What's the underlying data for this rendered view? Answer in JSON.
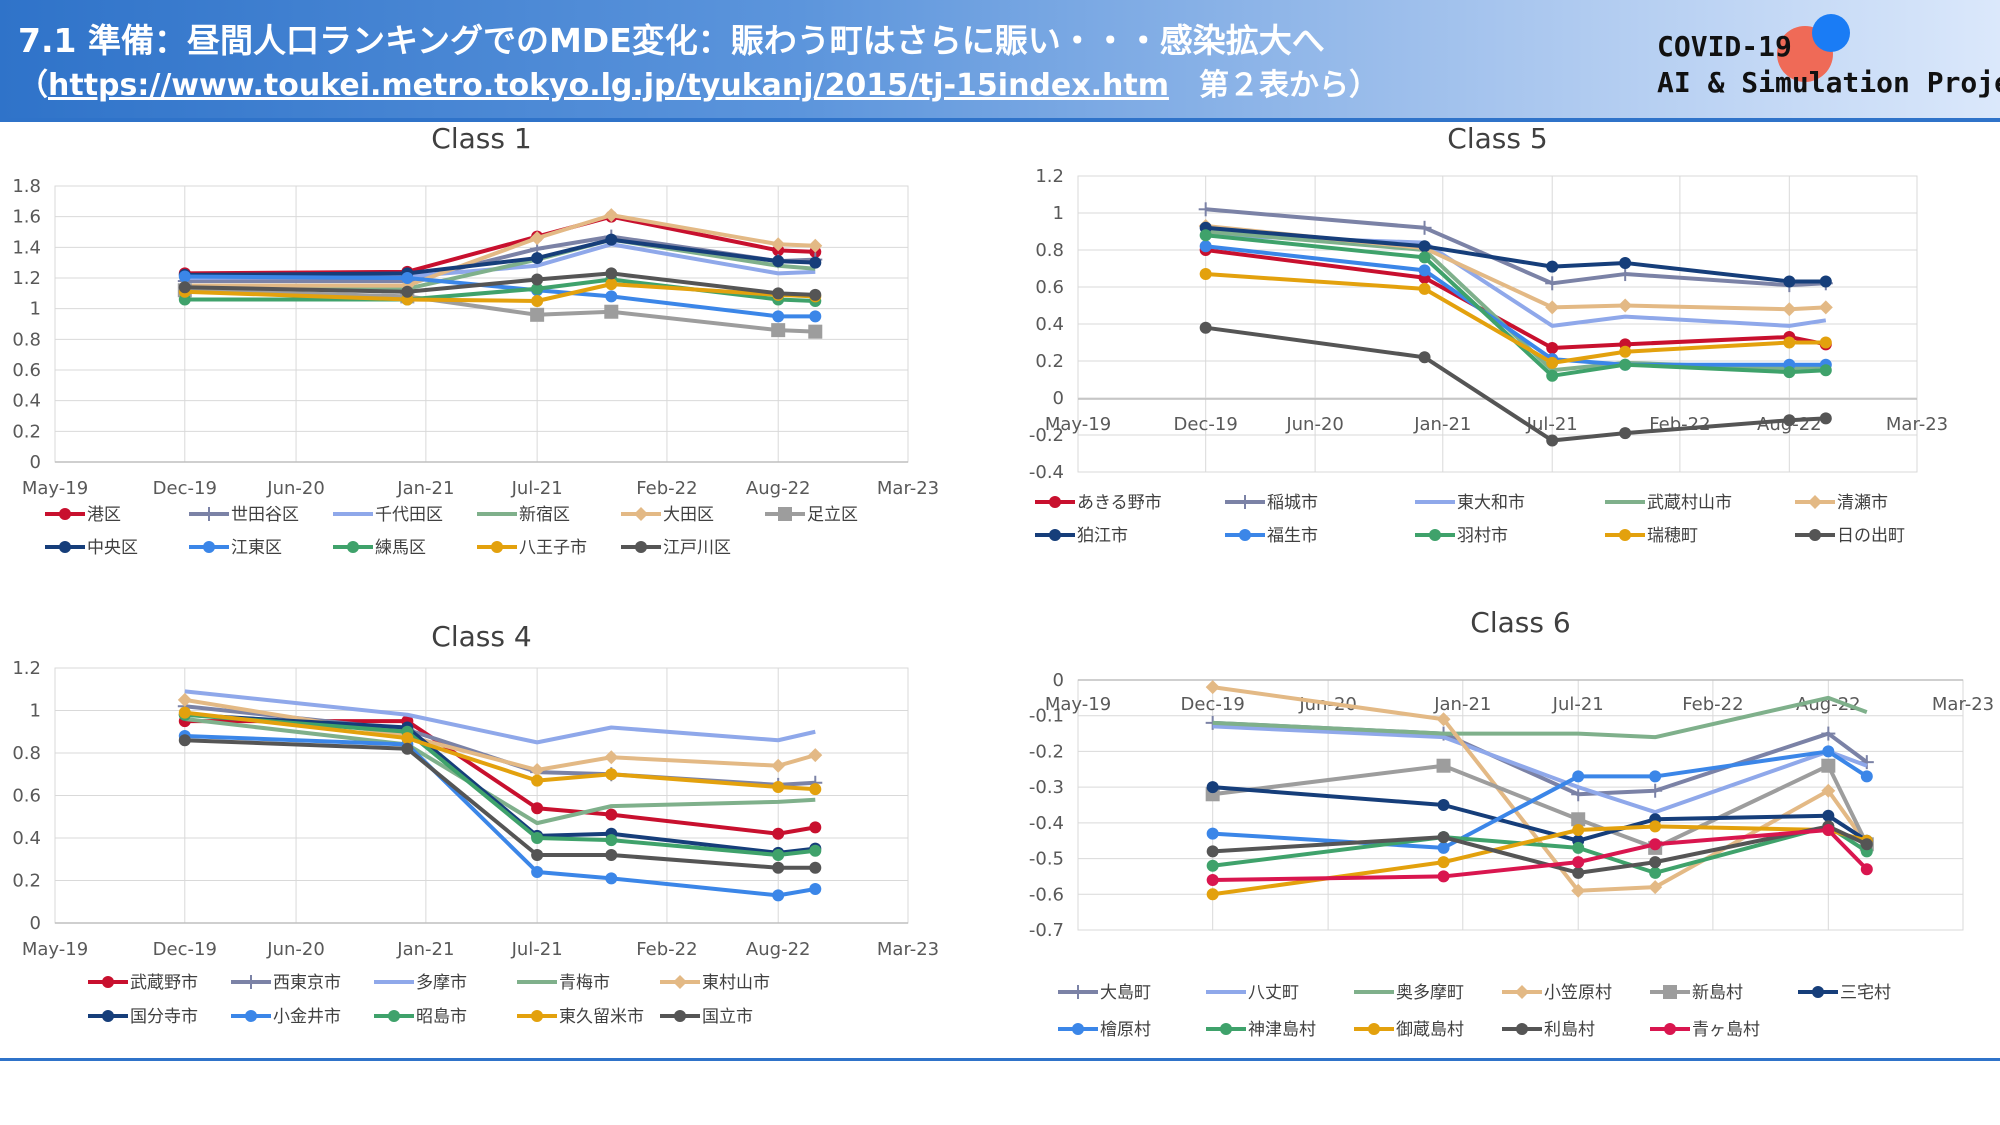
{
  "header": {
    "title": "7.1 準備：昼間人口ランキングでのMDE変化：賑わう町はさらに賑い・・・感染拡大へ",
    "source_open": "（",
    "source_url": "https://www.toukei.metro.tokyo.lg.jp/tyukanj/2015/tj-15index.htm",
    "source_rest": "　第２表から）",
    "logo_line1": "COVID-19",
    "logo_line2": "AI & Simulation Project"
  },
  "colors": {
    "banner_start": "#2f73c9",
    "banner_end": "#dbe8fb",
    "rule": "#2f73c9",
    "logo_red": "#ef6a57",
    "logo_blue": "#1a7cf5"
  },
  "x_tick_labels": [
    "May-19",
    "Dec-19",
    "Jun-20",
    "Jan-21",
    "Jul-21",
    "Feb-22",
    "Aug-22",
    "Mar-23"
  ],
  "chart_data": [
    {
      "id": "class1",
      "type": "line",
      "title": "Class 1",
      "ylim": [
        0,
        1.8
      ],
      "yticks": [
        "0",
        "0.2",
        "0.4",
        "0.6",
        "0.8",
        "1",
        "1.2",
        "1.4",
        "1.6",
        "1.8"
      ],
      "x_points": [
        "Dec-19",
        "Dec-20",
        "Jul-21",
        "Nov-21",
        "Aug-22",
        "Oct-22"
      ],
      "series": [
        {
          "name": "港区",
          "color": "#c8102e",
          "marker": "circle",
          "values": [
            1.23,
            1.24,
            1.47,
            1.6,
            1.38,
            1.37
          ]
        },
        {
          "name": "世田谷区",
          "color": "#7b82a6",
          "marker": "plus",
          "values": [
            1.18,
            1.18,
            1.39,
            1.47,
            1.31,
            1.32
          ]
        },
        {
          "name": "千代田区",
          "color": "#8fa8ea",
          "marker": "none",
          "values": [
            1.2,
            1.21,
            1.28,
            1.42,
            1.23,
            1.24
          ]
        },
        {
          "name": "新宿区",
          "color": "#7fb08b",
          "marker": "none",
          "values": [
            1.13,
            1.13,
            1.32,
            1.45,
            1.28,
            1.26
          ]
        },
        {
          "name": "大田区",
          "color": "#e3b985",
          "marker": "diamond",
          "values": [
            1.15,
            1.15,
            1.46,
            1.61,
            1.42,
            1.41
          ]
        },
        {
          "name": "足立区",
          "color": "#9d9d9d",
          "marker": "square",
          "values": [
            1.12,
            1.08,
            0.96,
            0.98,
            0.86,
            0.85
          ]
        },
        {
          "name": "中央区",
          "color": "#163e7a",
          "marker": "circle",
          "values": [
            1.22,
            1.23,
            1.33,
            1.45,
            1.31,
            1.3
          ]
        },
        {
          "name": "江東区",
          "color": "#3b86e8",
          "marker": "circle",
          "values": [
            1.21,
            1.2,
            1.12,
            1.08,
            0.95,
            0.95
          ]
        },
        {
          "name": "練馬区",
          "color": "#3fa26b",
          "marker": "circle",
          "values": [
            1.06,
            1.06,
            1.13,
            1.19,
            1.06,
            1.05
          ]
        },
        {
          "name": "八王子市",
          "color": "#e3a10d",
          "marker": "circle",
          "values": [
            1.11,
            1.06,
            1.05,
            1.16,
            1.09,
            1.08
          ]
        },
        {
          "name": "江戸川区",
          "color": "#555555",
          "marker": "circle",
          "values": [
            1.14,
            1.11,
            1.19,
            1.23,
            1.1,
            1.09
          ]
        }
      ]
    },
    {
      "id": "class5",
      "type": "line",
      "title": "Class 5",
      "ylim": [
        -0.4,
        1.2
      ],
      "yticks": [
        "-0.4",
        "-0.2",
        "0",
        "0.2",
        "0.4",
        "0.6",
        "0.8",
        "1",
        "1.2"
      ],
      "x_points": [
        "Dec-19",
        "Dec-20",
        "Jul-21",
        "Nov-21",
        "Aug-22",
        "Oct-22"
      ],
      "series": [
        {
          "name": "あきる野市",
          "color": "#c8102e",
          "marker": "circle",
          "values": [
            0.8,
            0.65,
            0.27,
            0.29,
            0.33,
            0.29
          ]
        },
        {
          "name": "稲城市",
          "color": "#7b82a6",
          "marker": "plus",
          "values": [
            1.02,
            0.92,
            0.62,
            0.67,
            0.61,
            0.62
          ]
        },
        {
          "name": "東大和市",
          "color": "#8fa8ea",
          "marker": "none",
          "values": [
            0.88,
            0.84,
            0.39,
            0.44,
            0.39,
            0.42
          ]
        },
        {
          "name": "武蔵村山市",
          "color": "#7fb08b",
          "marker": "none",
          "values": [
            0.9,
            0.8,
            0.15,
            0.19,
            0.16,
            0.17
          ]
        },
        {
          "name": "清瀬市",
          "color": "#e3b985",
          "marker": "diamond",
          "values": [
            0.93,
            0.81,
            0.49,
            0.5,
            0.48,
            0.49
          ]
        },
        {
          "name": "狛江市",
          "color": "#163e7a",
          "marker": "circle",
          "values": [
            0.92,
            0.82,
            0.71,
            0.73,
            0.63,
            0.63
          ]
        },
        {
          "name": "福生市",
          "color": "#3b86e8",
          "marker": "circle",
          "values": [
            0.82,
            0.69,
            0.21,
            0.18,
            0.18,
            0.18
          ]
        },
        {
          "name": "羽村市",
          "color": "#3fa26b",
          "marker": "circle",
          "values": [
            0.88,
            0.76,
            0.12,
            0.18,
            0.14,
            0.15
          ]
        },
        {
          "name": "瑞穂町",
          "color": "#e3a10d",
          "marker": "circle",
          "values": [
            0.67,
            0.59,
            0.19,
            0.25,
            0.3,
            0.3
          ]
        },
        {
          "name": "日の出町",
          "color": "#555555",
          "marker": "circle",
          "values": [
            0.38,
            0.22,
            -0.23,
            -0.19,
            -0.12,
            -0.11
          ]
        }
      ]
    },
    {
      "id": "class4",
      "type": "line",
      "title": "Class 4",
      "ylim": [
        0,
        1.2
      ],
      "yticks": [
        "0",
        "0.2",
        "0.4",
        "0.6",
        "0.8",
        "1",
        "1.2"
      ],
      "x_points": [
        "Dec-19",
        "Dec-20",
        "Jul-21",
        "Nov-21",
        "Aug-22",
        "Oct-22"
      ],
      "series": [
        {
          "name": "武蔵野市",
          "color": "#c8102e",
          "marker": "circle",
          "values": [
            0.95,
            0.95,
            0.54,
            0.51,
            0.42,
            0.45
          ]
        },
        {
          "name": "西東京市",
          "color": "#7b82a6",
          "marker": "plus",
          "values": [
            1.02,
            0.91,
            0.71,
            0.7,
            0.65,
            0.66
          ]
        },
        {
          "name": "多摩市",
          "color": "#8fa8ea",
          "marker": "none",
          "values": [
            1.09,
            0.98,
            0.85,
            0.92,
            0.86,
            0.9
          ]
        },
        {
          "name": "青梅市",
          "color": "#7fb08b",
          "marker": "none",
          "values": [
            0.96,
            0.84,
            0.47,
            0.55,
            0.57,
            0.58
          ]
        },
        {
          "name": "東村山市",
          "color": "#e3b985",
          "marker": "diamond",
          "values": [
            1.05,
            0.88,
            0.72,
            0.78,
            0.74,
            0.79
          ]
        },
        {
          "name": "国分寺市",
          "color": "#163e7a",
          "marker": "circle",
          "values": [
            0.98,
            0.92,
            0.41,
            0.42,
            0.33,
            0.35
          ]
        },
        {
          "name": "小金井市",
          "color": "#3b86e8",
          "marker": "circle",
          "values": [
            0.88,
            0.84,
            0.24,
            0.21,
            0.13,
            0.16
          ]
        },
        {
          "name": "昭島市",
          "color": "#3fa26b",
          "marker": "circle",
          "values": [
            0.98,
            0.9,
            0.4,
            0.39,
            0.32,
            0.34
          ]
        },
        {
          "name": "東久留米市",
          "color": "#e3a10d",
          "marker": "circle",
          "values": [
            0.99,
            0.87,
            0.67,
            0.7,
            0.64,
            0.63
          ]
        },
        {
          "name": "国立市",
          "color": "#555555",
          "marker": "circle",
          "values": [
            0.86,
            0.82,
            0.32,
            0.32,
            0.26,
            0.26
          ]
        }
      ]
    },
    {
      "id": "class6",
      "type": "line",
      "title": "Class 6",
      "ylim": [
        -0.7,
        0
      ],
      "yticks": [
        "-0.7",
        "-0.6",
        "-0.5",
        "-0.4",
        "-0.3",
        "-0.2",
        "-0.1",
        "0"
      ],
      "x_points": [
        "Dec-19",
        "Dec-20",
        "Jul-21",
        "Nov-21",
        "Aug-22",
        "Oct-22"
      ],
      "series": [
        {
          "name": "大島町",
          "color": "#7b82a6",
          "marker": "plus",
          "values": [
            -0.12,
            -0.15,
            -0.32,
            -0.31,
            -0.15,
            -0.23
          ]
        },
        {
          "name": "八丈町",
          "color": "#8fa8ea",
          "marker": "none",
          "values": [
            -0.13,
            -0.16,
            -0.3,
            -0.37,
            -0.2,
            -0.24
          ]
        },
        {
          "name": "奥多摩町",
          "color": "#7fb08b",
          "marker": "none",
          "values": [
            -0.12,
            -0.15,
            -0.15,
            -0.16,
            -0.05,
            -0.09
          ]
        },
        {
          "name": "小笠原村",
          "color": "#e3b985",
          "marker": "diamond",
          "values": [
            -0.02,
            -0.11,
            -0.59,
            -0.58,
            -0.31,
            -0.46
          ]
        },
        {
          "name": "新島村",
          "color": "#9d9d9d",
          "marker": "square",
          "values": [
            -0.32,
            -0.24,
            -0.39,
            -0.47,
            -0.24,
            -0.46
          ]
        },
        {
          "name": "三宅村",
          "color": "#163e7a",
          "marker": "circle",
          "values": [
            -0.3,
            -0.35,
            -0.45,
            -0.39,
            -0.38,
            -0.45
          ]
        },
        {
          "name": "檜原村",
          "color": "#3b86e8",
          "marker": "circle",
          "values": [
            -0.43,
            -0.47,
            -0.27,
            -0.27,
            -0.2,
            -0.27
          ]
        },
        {
          "name": "神津島村",
          "color": "#3fa26b",
          "marker": "circle",
          "values": [
            -0.52,
            -0.44,
            -0.47,
            -0.54,
            -0.41,
            -0.48
          ]
        },
        {
          "name": "御蔵島村",
          "color": "#e3a10d",
          "marker": "circle",
          "values": [
            -0.6,
            -0.51,
            -0.42,
            -0.41,
            -0.42,
            -0.45
          ]
        },
        {
          "name": "利島村",
          "color": "#555555",
          "marker": "circle",
          "values": [
            -0.48,
            -0.44,
            -0.54,
            -0.51,
            -0.41,
            -0.46
          ]
        },
        {
          "name": "青ヶ島村",
          "color": "#d9164f",
          "marker": "circle",
          "values": [
            -0.56,
            -0.55,
            -0.51,
            -0.46,
            -0.42,
            -0.53
          ]
        }
      ]
    }
  ]
}
